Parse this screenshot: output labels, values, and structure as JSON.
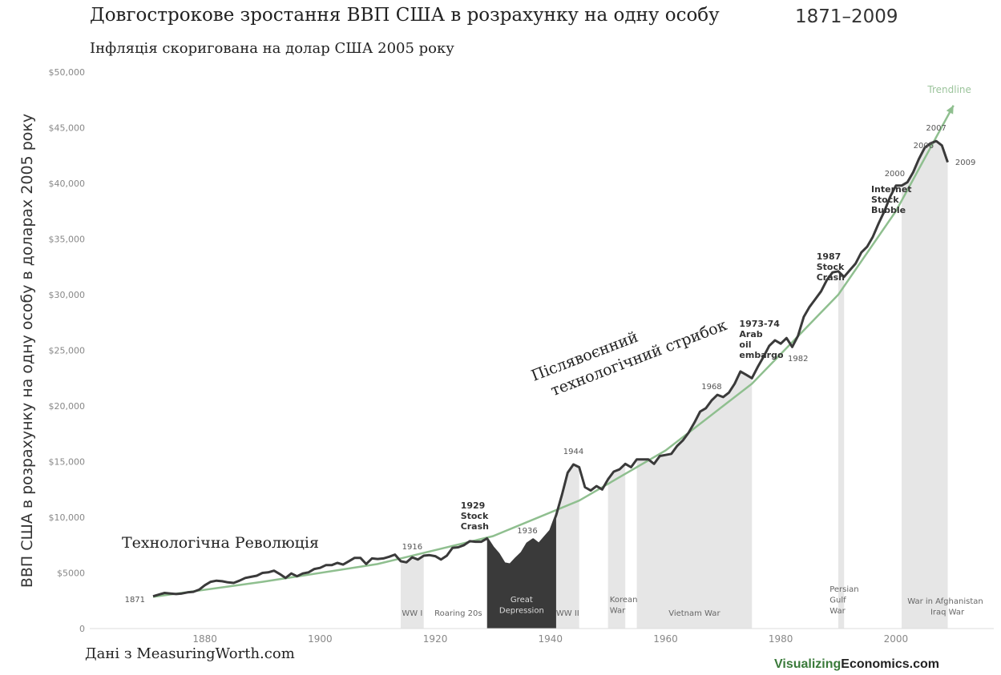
{
  "header": {
    "title": "Довгострокове зростання ВВП США в розрахунку на одну особу",
    "years": "1871–2009",
    "subtitle": "Інфляція скоригована на долар США 2005 року"
  },
  "footer": {
    "source": "Дані з MeasuringWorth.com",
    "brand_part1": "Visualizing",
    "brand_part2": "Economics.com"
  },
  "colors": {
    "line": "#3a3a3a",
    "trend": "#8fbf8f",
    "band": "#e6e6e6",
    "depression": "#3a3a3a"
  },
  "chart_data": {
    "type": "line",
    "title": "Довгострокове зростання ВВП США в розрахунку на одну особу",
    "xlabel": "",
    "ylabel": "ВВП США в розрахунку на одну особу в доларах 2005 року",
    "xlim": [
      1860,
      2017
    ],
    "ylim": [
      0,
      50000
    ],
    "x_ticks": [
      1880,
      1900,
      1920,
      1940,
      1960,
      1980,
      2000
    ],
    "y_ticks": [
      {
        "value": 0,
        "label": "0"
      },
      {
        "value": 5000,
        "label": "$5000"
      },
      {
        "value": 10000,
        "label": "$10,000"
      },
      {
        "value": 15000,
        "label": "$15,000"
      },
      {
        "value": 20000,
        "label": "$20,000"
      },
      {
        "value": 25000,
        "label": "$25,000"
      },
      {
        "value": 30000,
        "label": "$30,000"
      },
      {
        "value": 35000,
        "label": "$35,000"
      },
      {
        "value": 40000,
        "label": "$40,000"
      },
      {
        "value": 45000,
        "label": "$45,000"
      },
      {
        "value": 50000,
        "label": "$50,000"
      }
    ],
    "grid": false,
    "series": [
      {
        "points": [
          [
            1871,
            2900
          ],
          [
            1872,
            3050
          ],
          [
            1873,
            3200
          ],
          [
            1874,
            3150
          ],
          [
            1875,
            3100
          ],
          [
            1876,
            3150
          ],
          [
            1877,
            3250
          ],
          [
            1878,
            3300
          ],
          [
            1879,
            3500
          ],
          [
            1880,
            3900
          ],
          [
            1881,
            4200
          ],
          [
            1882,
            4300
          ],
          [
            1883,
            4250
          ],
          [
            1884,
            4150
          ],
          [
            1885,
            4100
          ],
          [
            1886,
            4300
          ],
          [
            1887,
            4550
          ],
          [
            1888,
            4650
          ],
          [
            1889,
            4750
          ],
          [
            1890,
            5000
          ],
          [
            1891,
            5050
          ],
          [
            1892,
            5200
          ],
          [
            1893,
            4900
          ],
          [
            1894,
            4550
          ],
          [
            1895,
            4950
          ],
          [
            1896,
            4700
          ],
          [
            1897,
            4950
          ],
          [
            1898,
            5050
          ],
          [
            1899,
            5350
          ],
          [
            1900,
            5450
          ],
          [
            1901,
            5700
          ],
          [
            1902,
            5700
          ],
          [
            1903,
            5900
          ],
          [
            1904,
            5750
          ],
          [
            1905,
            6050
          ],
          [
            1906,
            6350
          ],
          [
            1907,
            6350
          ],
          [
            1908,
            5800
          ],
          [
            1909,
            6300
          ],
          [
            1910,
            6250
          ],
          [
            1911,
            6300
          ],
          [
            1912,
            6450
          ],
          [
            1913,
            6650
          ],
          [
            1914,
            6050
          ],
          [
            1915,
            5950
          ],
          [
            1916,
            6400
          ],
          [
            1917,
            6200
          ],
          [
            1918,
            6550
          ],
          [
            1919,
            6600
          ],
          [
            1920,
            6500
          ],
          [
            1921,
            6200
          ],
          [
            1922,
            6550
          ],
          [
            1923,
            7250
          ],
          [
            1924,
            7300
          ],
          [
            1925,
            7500
          ],
          [
            1926,
            7850
          ],
          [
            1927,
            7800
          ],
          [
            1928,
            7800
          ],
          [
            1929,
            8100
          ],
          [
            1930,
            7300
          ],
          [
            1931,
            6700
          ],
          [
            1932,
            5850
          ],
          [
            1933,
            5750
          ],
          [
            1934,
            6300
          ],
          [
            1935,
            6800
          ],
          [
            1936,
            7650
          ],
          [
            1937,
            8000
          ],
          [
            1938,
            7600
          ],
          [
            1939,
            8200
          ],
          [
            1940,
            8800
          ],
          [
            1941,
            10200
          ],
          [
            1942,
            12000
          ],
          [
            1943,
            14000
          ],
          [
            1944,
            14750
          ],
          [
            1945,
            14500
          ],
          [
            1946,
            12700
          ],
          [
            1947,
            12400
          ],
          [
            1948,
            12800
          ],
          [
            1949,
            12500
          ],
          [
            1950,
            13400
          ],
          [
            1951,
            14100
          ],
          [
            1952,
            14300
          ],
          [
            1953,
            14800
          ],
          [
            1954,
            14500
          ],
          [
            1955,
            15200
          ],
          [
            1956,
            15200
          ],
          [
            1957,
            15200
          ],
          [
            1958,
            14800
          ],
          [
            1959,
            15500
          ],
          [
            1960,
            15600
          ],
          [
            1961,
            15700
          ],
          [
            1962,
            16400
          ],
          [
            1963,
            16900
          ],
          [
            1964,
            17600
          ],
          [
            1965,
            18500
          ],
          [
            1966,
            19500
          ],
          [
            1967,
            19800
          ],
          [
            1968,
            20500
          ],
          [
            1969,
            21000
          ],
          [
            1970,
            20800
          ],
          [
            1971,
            21200
          ],
          [
            1972,
            22000
          ],
          [
            1973,
            23100
          ],
          [
            1974,
            22800
          ],
          [
            1975,
            22500
          ],
          [
            1976,
            23500
          ],
          [
            1977,
            24400
          ],
          [
            1978,
            25400
          ],
          [
            1979,
            25900
          ],
          [
            1980,
            25600
          ],
          [
            1981,
            26100
          ],
          [
            1982,
            25300
          ],
          [
            1983,
            26300
          ],
          [
            1984,
            28000
          ],
          [
            1985,
            28900
          ],
          [
            1986,
            29600
          ],
          [
            1987,
            30300
          ],
          [
            1988,
            31300
          ],
          [
            1989,
            32000
          ],
          [
            1990,
            32100
          ],
          [
            1991,
            31600
          ],
          [
            1992,
            32200
          ],
          [
            1993,
            32800
          ],
          [
            1994,
            33800
          ],
          [
            1995,
            34300
          ],
          [
            1996,
            35200
          ],
          [
            1997,
            36400
          ],
          [
            1998,
            37500
          ],
          [
            1999,
            38800
          ],
          [
            2000,
            39800
          ],
          [
            2001,
            39800
          ],
          [
            2002,
            40100
          ],
          [
            2003,
            41000
          ],
          [
            2004,
            42200
          ],
          [
            2005,
            43200
          ],
          [
            2006,
            43600
          ],
          [
            2007,
            43800
          ],
          [
            2008,
            43400
          ],
          [
            2009,
            41900
          ]
        ]
      }
    ],
    "trendline": {
      "label": "Trendline",
      "points": [
        [
          1871,
          2850
        ],
        [
          1890,
          4200
        ],
        [
          1910,
          5800
        ],
        [
          1930,
          8300
        ],
        [
          1945,
          11500
        ],
        [
          1960,
          16000
        ],
        [
          1975,
          22000
        ],
        [
          1990,
          30000
        ],
        [
          2000,
          37500
        ],
        [
          2010,
          47000
        ]
      ]
    },
    "war_bands": [
      {
        "from": 1914,
        "to": 1918,
        "label_lines": [
          "WW I"
        ],
        "style": "light"
      },
      {
        "from": 1929,
        "to": 1941,
        "label_lines": [
          "Great",
          "Depression"
        ],
        "style": "dark"
      },
      {
        "from": 1941,
        "to": 1945,
        "label_lines": [
          "WW II"
        ],
        "style": "light"
      },
      {
        "from": 1950,
        "to": 1953,
        "label_lines": [
          "Korean",
          "War"
        ],
        "style": "light"
      },
      {
        "from": 1955,
        "to": 1975,
        "label_lines": [
          "Vietnam War"
        ],
        "style": "light"
      },
      {
        "from": 1990,
        "to": 1991,
        "label_lines": [
          "Persian",
          "Gulf",
          "War"
        ],
        "style": "light"
      },
      {
        "from": 2001,
        "to": 2009,
        "label_lines": [
          "War in Afghanistan",
          "Iraq War"
        ],
        "style": "light"
      }
    ],
    "period_labels": [
      {
        "text": "Roaring 20s",
        "x": 1924
      }
    ],
    "year_labels": [
      {
        "text": "1871",
        "x": 1871
      },
      {
        "text": "1916",
        "x": 1916
      },
      {
        "text": "1936",
        "x": 1936
      },
      {
        "text": "1944",
        "x": 1944
      },
      {
        "text": "1968",
        "x": 1968
      },
      {
        "text": "1982",
        "x": 1982
      },
      {
        "text": "2000",
        "x": 2000
      },
      {
        "text": "2006",
        "x": 2006
      },
      {
        "text": "2007",
        "x": 2007
      },
      {
        "text": "2009",
        "x": 2009
      }
    ],
    "annotations": [
      {
        "lines": [
          "1929",
          "Stock",
          "Crash"
        ]
      },
      {
        "lines": [
          "1973-74",
          "Arab",
          "oil",
          "embargo"
        ]
      },
      {
        "lines": [
          "1987",
          "Stock",
          "Crash"
        ]
      },
      {
        "lines": [
          "Internet",
          "Stock",
          "Bubble"
        ]
      }
    ],
    "era_labels": {
      "tech_revolution": "Технологічна Революція",
      "postwar_line1": "Післявоєнний",
      "postwar_line2": "технологічний стрибок"
    }
  }
}
